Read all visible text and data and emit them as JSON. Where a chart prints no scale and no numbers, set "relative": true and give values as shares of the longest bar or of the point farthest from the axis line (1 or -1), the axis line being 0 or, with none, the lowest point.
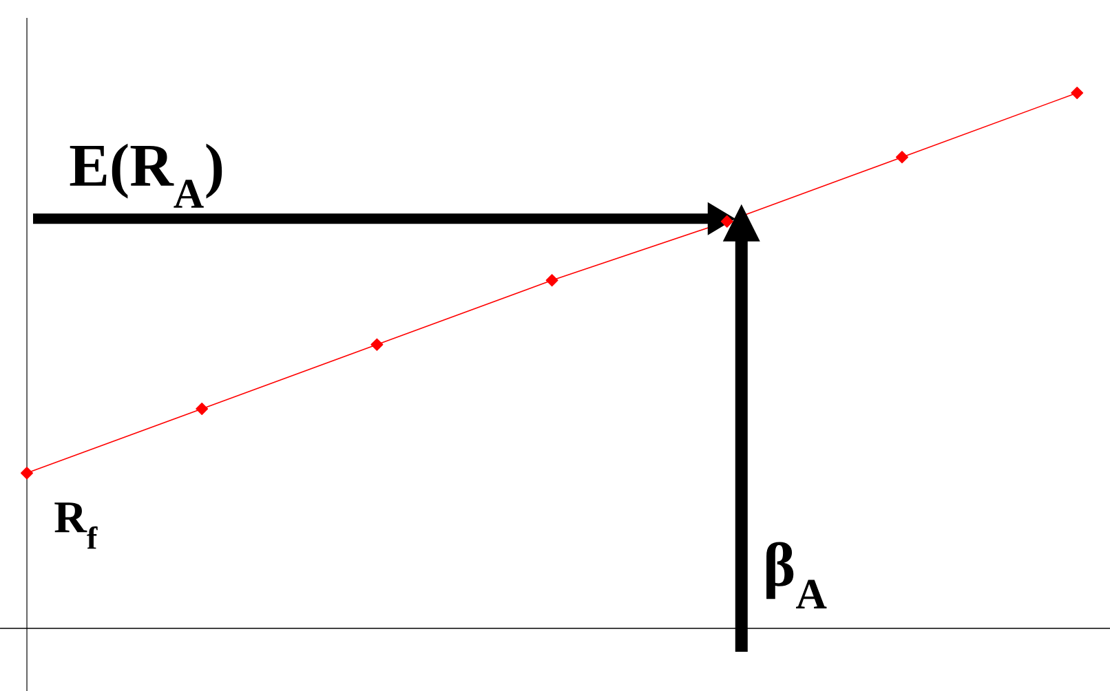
{
  "chart_data": {
    "type": "line",
    "relative": true,
    "categories": [
      null,
      null,
      null,
      null,
      null,
      null,
      null
    ],
    "series": [
      {
        "color": "#ff0000",
        "values": [
          0.29,
          0.41,
          0.53,
          0.65,
          0.76,
          0.88,
          1
        ]
      }
    ],
    "marker": "diamond",
    "line_style": "solid",
    "annotations": [
      "E(R$_{A}$)",
      "R$_{f}$",
      "β$_{A}$"
    ]
  }
}
